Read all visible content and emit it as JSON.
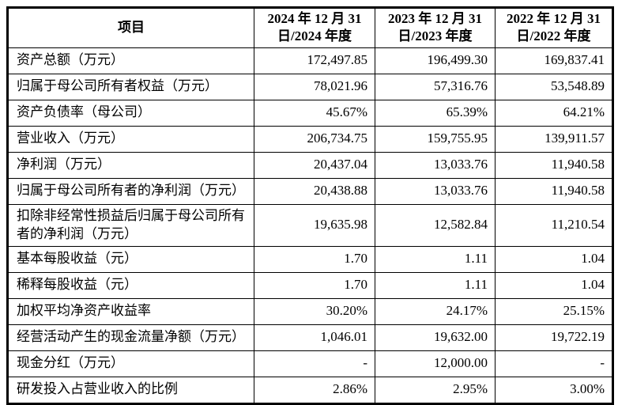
{
  "table": {
    "header": {
      "item_label": "项目",
      "periods": [
        "2024 年 12 月 31\n日/2024 年度",
        "2023 年 12 月 31\n日/2023 年度",
        "2022 年 12 月 31\n日/2022 年度"
      ]
    },
    "rows": [
      {
        "label": "资产总额（万元）",
        "values": [
          "172,497.85",
          "196,499.30",
          "169,837.41"
        ]
      },
      {
        "label": "归属于母公司所有者权益（万元）",
        "values": [
          "78,021.96",
          "57,316.76",
          "53,548.89"
        ]
      },
      {
        "label": "资产负债率（母公司）",
        "values": [
          "45.67%",
          "65.39%",
          "64.21%"
        ]
      },
      {
        "label": "营业收入（万元）",
        "values": [
          "206,734.75",
          "159,755.95",
          "139,911.57"
        ]
      },
      {
        "label": "净利润（万元）",
        "values": [
          "20,437.04",
          "13,033.76",
          "11,940.58"
        ]
      },
      {
        "label": "归属于母公司所有者的净利润（万元）",
        "values": [
          "20,438.88",
          "13,033.76",
          "11,940.58"
        ]
      },
      {
        "label": "扣除非经常性损益后归属于母公司所有者的净利润（万元）",
        "values": [
          "19,635.98",
          "12,582.84",
          "11,210.54"
        ]
      },
      {
        "label": "基本每股收益（元）",
        "values": [
          "1.70",
          "1.11",
          "1.04"
        ]
      },
      {
        "label": "稀释每股收益（元）",
        "values": [
          "1.70",
          "1.11",
          "1.04"
        ]
      },
      {
        "label": "加权平均净资产收益率",
        "values": [
          "30.20%",
          "24.17%",
          "25.15%"
        ]
      },
      {
        "label": "经营活动产生的现金流量净额（万元）",
        "values": [
          "1,046.01",
          "19,632.00",
          "19,722.19"
        ]
      },
      {
        "label": "现金分红（万元）",
        "values": [
          "-",
          "12,000.00",
          "-"
        ]
      },
      {
        "label": "研发投入占营业收入的比例",
        "values": [
          "2.86%",
          "2.95%",
          "3.00%"
        ]
      }
    ],
    "colors": {
      "border": "#000000",
      "text": "#000000",
      "background": "#ffffff"
    }
  }
}
